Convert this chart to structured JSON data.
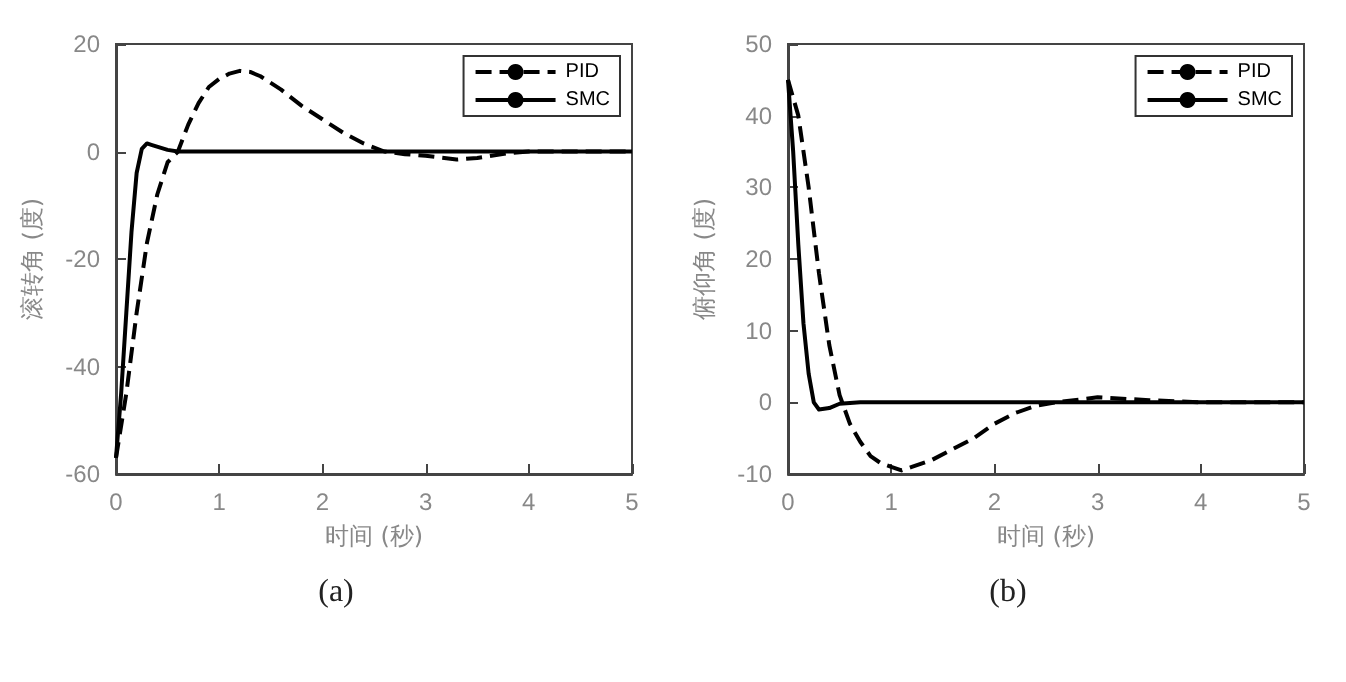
{
  "chart_data": [
    {
      "type": "line",
      "xlabel": "时间 (秒)",
      "ylabel": "滚转角 (度)",
      "annotations": [
        "(a)"
      ],
      "xlim": [
        0,
        5
      ],
      "xticks": [
        0,
        1,
        2,
        3,
        4,
        5
      ],
      "ylim": [
        -60,
        20
      ],
      "yticks": [
        -60,
        -40,
        -20,
        0,
        20
      ],
      "grid": false,
      "legend": "top right",
      "marker": "none",
      "series": [
        {
          "name": "PID",
          "color": "#000000",
          "line_style": "dashed",
          "x": [
            0,
            0.1,
            0.2,
            0.3,
            0.4,
            0.5,
            0.6,
            0.7,
            0.8,
            0.9,
            1.0,
            1.1,
            1.2,
            1.3,
            1.4,
            1.6,
            1.8,
            2.0,
            2.2,
            2.4,
            2.6,
            2.8,
            3.0,
            3.3,
            3.5,
            3.8,
            4.0,
            4.5,
            5.0
          ],
          "values": [
            -57,
            -45,
            -30,
            -17,
            -8,
            -2,
            0,
            5,
            9,
            12,
            13.5,
            14.5,
            15,
            14.8,
            14,
            11.5,
            8.5,
            6,
            3.5,
            1.5,
            0,
            -0.5,
            -0.8,
            -1.5,
            -1.2,
            -0.3,
            0,
            0,
            0
          ]
        },
        {
          "name": "SMC",
          "color": "#000000",
          "line_style": "solid",
          "x": [
            0,
            0.05,
            0.1,
            0.15,
            0.2,
            0.25,
            0.3,
            0.35,
            0.5,
            0.6,
            1.0,
            2.0,
            3.0,
            4.0,
            5.0
          ],
          "values": [
            -57,
            -45,
            -30,
            -15,
            -4,
            0.5,
            1.5,
            1.2,
            0.3,
            0,
            0,
            0,
            0,
            0,
            0
          ]
        }
      ]
    },
    {
      "type": "line",
      "xlabel": "时间 (秒)",
      "ylabel": "俯仰角 (度)",
      "annotations": [
        "(b)"
      ],
      "xlim": [
        0,
        5
      ],
      "xticks": [
        0,
        1,
        2,
        3,
        4,
        5
      ],
      "ylim": [
        -10,
        50
      ],
      "yticks": [
        -10,
        0,
        10,
        20,
        30,
        40,
        50
      ],
      "grid": false,
      "legend": "top right",
      "marker": "none",
      "series": [
        {
          "name": "PID",
          "color": "#000000",
          "line_style": "dashed",
          "x": [
            0,
            0.1,
            0.2,
            0.3,
            0.4,
            0.5,
            0.6,
            0.7,
            0.8,
            0.9,
            1.0,
            1.1,
            1.2,
            1.4,
            1.6,
            1.8,
            2.0,
            2.2,
            2.4,
            2.6,
            3.0,
            3.5,
            4.0,
            5.0
          ],
          "values": [
            45,
            40,
            30,
            18,
            8,
            1,
            -3,
            -5.5,
            -7.5,
            -8.5,
            -9,
            -9.5,
            -9,
            -8,
            -6.5,
            -5,
            -3,
            -1.5,
            -0.5,
            0,
            0.7,
            0.3,
            0,
            0
          ]
        },
        {
          "name": "SMC",
          "color": "#000000",
          "line_style": "solid",
          "x": [
            0,
            0.05,
            0.1,
            0.15,
            0.2,
            0.25,
            0.3,
            0.4,
            0.5,
            0.7,
            1.0,
            2.0,
            3.0,
            4.0,
            5.0
          ],
          "values": [
            45,
            35,
            22,
            11,
            4,
            0,
            -1,
            -0.8,
            -0.2,
            0,
            0,
            0,
            0,
            0,
            0
          ]
        }
      ]
    }
  ]
}
